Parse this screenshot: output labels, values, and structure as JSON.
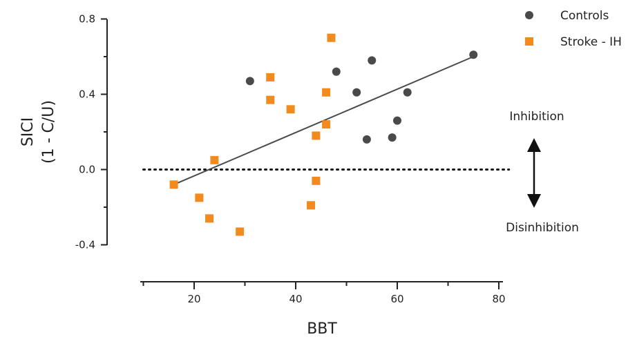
{
  "chart_data": {
    "type": "scatter",
    "title": "",
    "xlabel": "BBT",
    "ylabel_lines": [
      "SICI",
      "(1 - C/U)"
    ],
    "xlim": [
      10,
      80
    ],
    "ylim": [
      -0.4,
      0.8
    ],
    "x_ticks": [
      20,
      40,
      60,
      80
    ],
    "x_tick_labels": [
      "20",
      "40",
      "60",
      "80"
    ],
    "x_minor_ticks": [
      10,
      30,
      50,
      70
    ],
    "y_ticks": [
      0.8,
      0.4,
      0.0,
      -0.4
    ],
    "y_tick_labels": [
      "0.8",
      "0.4",
      "0.0",
      "-0.4"
    ],
    "y_minor_ticks": [
      0.6,
      0.2,
      -0.2
    ],
    "grid": false,
    "legend_position": "top-right",
    "series": [
      {
        "name": "Controls",
        "marker": "circle",
        "color": "#4a4a4a",
        "points": [
          {
            "x": 31,
            "y": 0.47
          },
          {
            "x": 48,
            "y": 0.52
          },
          {
            "x": 52,
            "y": 0.41
          },
          {
            "x": 55,
            "y": 0.58
          },
          {
            "x": 54,
            "y": 0.16
          },
          {
            "x": 59,
            "y": 0.17
          },
          {
            "x": 60,
            "y": 0.26
          },
          {
            "x": 62,
            "y": 0.41
          },
          {
            "x": 75,
            "y": 0.61
          }
        ]
      },
      {
        "name": "Stroke - IH",
        "marker": "square",
        "color": "#f28a1e",
        "points": [
          {
            "x": 16,
            "y": -0.08
          },
          {
            "x": 21,
            "y": -0.15
          },
          {
            "x": 23,
            "y": -0.26
          },
          {
            "x": 24,
            "y": 0.05
          },
          {
            "x": 29,
            "y": -0.33
          },
          {
            "x": 35,
            "y": 0.49
          },
          {
            "x": 35,
            "y": 0.37
          },
          {
            "x": 39,
            "y": 0.32
          },
          {
            "x": 43,
            "y": -0.19
          },
          {
            "x": 44,
            "y": 0.18
          },
          {
            "x": 44,
            "y": -0.06
          },
          {
            "x": 46,
            "y": 0.41
          },
          {
            "x": 46,
            "y": 0.24
          },
          {
            "x": 47,
            "y": 0.7
          }
        ]
      }
    ],
    "fit_line": {
      "x": [
        16,
        75
      ],
      "y": [
        -0.08,
        0.6
      ],
      "color": "#4a4a4a"
    },
    "reference_line": {
      "y": 0.0,
      "style": "dotted",
      "x_range": [
        10,
        82
      ]
    },
    "annotations": {
      "inhibition": "Inhibition",
      "disinhibition": "Disinhibition"
    }
  }
}
